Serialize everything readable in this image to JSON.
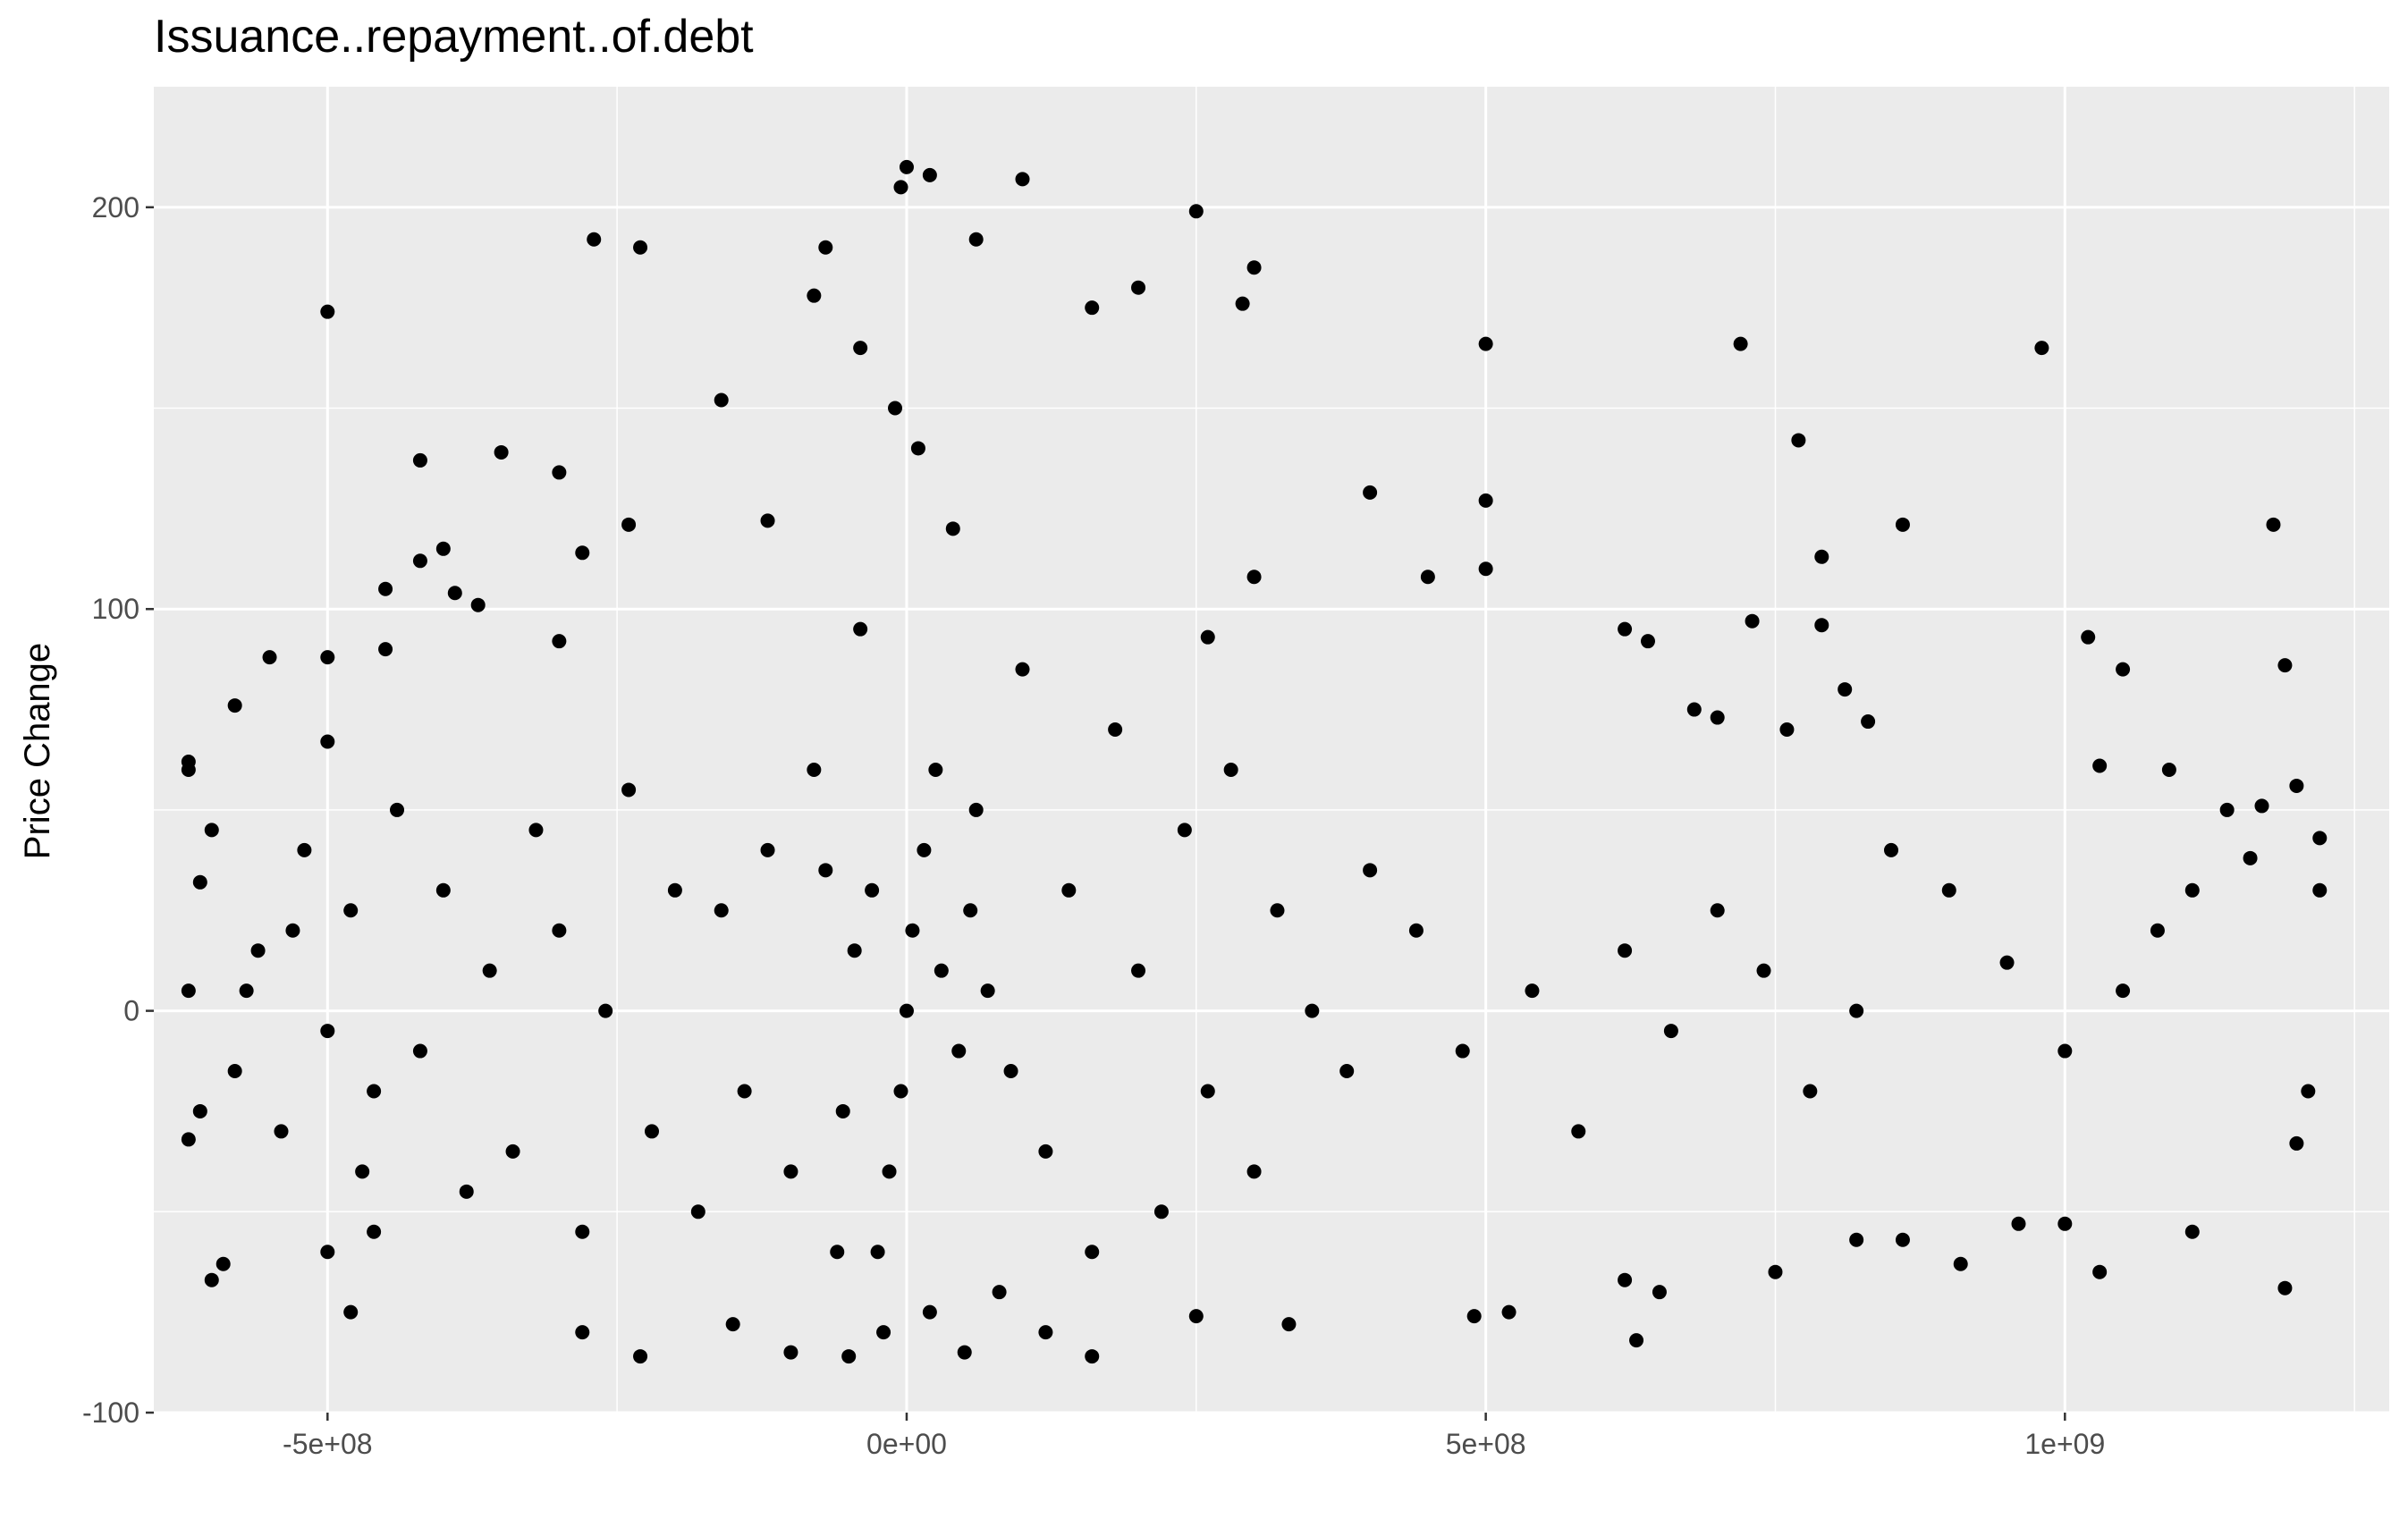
{
  "chart_data": {
    "type": "scatter",
    "title": "Issuance..repayment..of.debt",
    "xlabel": "",
    "ylabel": "Price Change",
    "xlim": [
      -650000000,
      1280000000
    ],
    "ylim": [
      -100,
      230
    ],
    "x_ticks": [
      {
        "value": -500000000,
        "label": "-5e+08"
      },
      {
        "value": 0,
        "label": "0e+00"
      },
      {
        "value": 500000000,
        "label": "5e+08"
      },
      {
        "value": 1000000000,
        "label": "1e+09"
      }
    ],
    "y_ticks": [
      {
        "value": -100,
        "label": "-100"
      },
      {
        "value": 0,
        "label": "0"
      },
      {
        "value": 100,
        "label": "100"
      },
      {
        "value": 200,
        "label": "200"
      }
    ],
    "grid": true,
    "background": "#ebebeb",
    "point_color": "#000000",
    "series": [
      {
        "points": [
          [
            0,
            210
          ],
          [
            -5000000,
            205
          ],
          [
            20000000,
            208
          ],
          [
            100000000,
            207
          ],
          [
            250000000,
            199
          ],
          [
            -500000000,
            174
          ],
          [
            -270000000,
            192
          ],
          [
            -230000000,
            190
          ],
          [
            300000000,
            185
          ],
          [
            290000000,
            176
          ],
          [
            -70000000,
            190
          ],
          [
            60000000,
            192
          ],
          [
            -80000000,
            178
          ],
          [
            -40000000,
            165
          ],
          [
            160000000,
            175
          ],
          [
            200000000,
            180
          ],
          [
            -160000000,
            152
          ],
          [
            -420000000,
            137
          ],
          [
            -350000000,
            139
          ],
          [
            -300000000,
            134
          ],
          [
            -120000000,
            122
          ],
          [
            -240000000,
            121
          ],
          [
            -280000000,
            114
          ],
          [
            -420000000,
            112
          ],
          [
            -400000000,
            115
          ],
          [
            -370000000,
            101
          ],
          [
            -390000000,
            104
          ],
          [
            -450000000,
            105
          ],
          [
            -550000000,
            88
          ],
          [
            -500000000,
            88
          ],
          [
            -450000000,
            90
          ],
          [
            -580000000,
            76
          ],
          [
            -300000000,
            92
          ],
          [
            -500000000,
            67
          ],
          [
            -620000000,
            62
          ],
          [
            -620000000,
            60
          ],
          [
            -610000000,
            32
          ],
          [
            -620000000,
            5
          ],
          [
            -620000000,
            -32
          ],
          [
            -600000000,
            -67
          ],
          [
            -590000000,
            -63
          ],
          [
            -480000000,
            -75
          ],
          [
            -500000000,
            -60
          ],
          [
            -460000000,
            -55
          ],
          [
            -280000000,
            -80
          ],
          [
            -230000000,
            -86
          ],
          [
            -150000000,
            -78
          ],
          [
            -100000000,
            -85
          ],
          [
            -50000000,
            -86
          ],
          [
            50000000,
            -85
          ],
          [
            120000000,
            -80
          ],
          [
            160000000,
            -86
          ],
          [
            250000000,
            -76
          ],
          [
            330000000,
            -78
          ],
          [
            490000000,
            -76
          ],
          [
            520000000,
            -75
          ],
          [
            630000000,
            -82
          ],
          [
            620000000,
            -67
          ],
          [
            650000000,
            -70
          ],
          [
            750000000,
            -65
          ],
          [
            820000000,
            -57
          ],
          [
            860000000,
            -57
          ],
          [
            910000000,
            -63
          ],
          [
            960000000,
            -53
          ],
          [
            1000000000,
            -53
          ],
          [
            1030000000,
            -65
          ],
          [
            1110000000,
            -55
          ],
          [
            1190000000,
            -69
          ],
          [
            1200000000,
            -33
          ],
          [
            1210000000,
            -20
          ],
          [
            1220000000,
            30
          ],
          [
            1220000000,
            43
          ],
          [
            1200000000,
            56
          ],
          [
            1190000000,
            86
          ],
          [
            1180000000,
            121
          ],
          [
            1050000000,
            85
          ],
          [
            1020000000,
            93
          ],
          [
            1030000000,
            61
          ],
          [
            980000000,
            165
          ],
          [
            720000000,
            166
          ],
          [
            500000000,
            166
          ],
          [
            770000000,
            142
          ],
          [
            860000000,
            121
          ],
          [
            790000000,
            113
          ],
          [
            730000000,
            97
          ],
          [
            790000000,
            96
          ],
          [
            810000000,
            80
          ],
          [
            500000000,
            127
          ],
          [
            400000000,
            129
          ],
          [
            450000000,
            108
          ],
          [
            500000000,
            110
          ],
          [
            300000000,
            108
          ],
          [
            260000000,
            93
          ],
          [
            620000000,
            95
          ],
          [
            640000000,
            92
          ],
          [
            680000000,
            75
          ],
          [
            700000000,
            73
          ],
          [
            760000000,
            70
          ],
          [
            830000000,
            72
          ],
          [
            1090000000,
            60
          ],
          [
            1140000000,
            50
          ],
          [
            1170000000,
            51
          ],
          [
            1160000000,
            38
          ],
          [
            1110000000,
            30
          ],
          [
            1080000000,
            20
          ],
          [
            1050000000,
            5
          ],
          [
            1000000000,
            -10
          ],
          [
            950000000,
            12
          ],
          [
            900000000,
            30
          ],
          [
            850000000,
            40
          ],
          [
            820000000,
            0
          ],
          [
            780000000,
            -20
          ],
          [
            740000000,
            10
          ],
          [
            700000000,
            25
          ],
          [
            660000000,
            -5
          ],
          [
            620000000,
            15
          ],
          [
            580000000,
            -30
          ],
          [
            540000000,
            5
          ],
          [
            480000000,
            -10
          ],
          [
            440000000,
            20
          ],
          [
            400000000,
            35
          ],
          [
            380000000,
            -15
          ],
          [
            350000000,
            0
          ],
          [
            320000000,
            25
          ],
          [
            300000000,
            -40
          ],
          [
            280000000,
            60
          ],
          [
            260000000,
            -20
          ],
          [
            240000000,
            45
          ],
          [
            220000000,
            -50
          ],
          [
            200000000,
            10
          ],
          [
            180000000,
            70
          ],
          [
            160000000,
            -60
          ],
          [
            140000000,
            30
          ],
          [
            120000000,
            -35
          ],
          [
            100000000,
            85
          ],
          [
            80000000,
            -70
          ],
          [
            60000000,
            50
          ],
          [
            40000000,
            120
          ],
          [
            20000000,
            -75
          ],
          [
            10000000,
            140
          ],
          [
            -10000000,
            150
          ],
          [
            -20000000,
            -80
          ],
          [
            -40000000,
            95
          ],
          [
            -60000000,
            -60
          ],
          [
            -80000000,
            60
          ],
          [
            -100000000,
            -40
          ],
          [
            -120000000,
            40
          ],
          [
            -140000000,
            -20
          ],
          [
            -160000000,
            25
          ],
          [
            -180000000,
            -50
          ],
          [
            -200000000,
            30
          ],
          [
            -220000000,
            -30
          ],
          [
            -240000000,
            55
          ],
          [
            -260000000,
            0
          ],
          [
            -280000000,
            -55
          ],
          [
            -300000000,
            20
          ],
          [
            -320000000,
            45
          ],
          [
            -340000000,
            -35
          ],
          [
            -360000000,
            10
          ],
          [
            -380000000,
            -45
          ],
          [
            -400000000,
            30
          ],
          [
            -420000000,
            -10
          ],
          [
            -440000000,
            50
          ],
          [
            -460000000,
            -20
          ],
          [
            -480000000,
            25
          ],
          [
            -500000000,
            -5
          ],
          [
            -520000000,
            40
          ],
          [
            -540000000,
            -30
          ],
          [
            -560000000,
            15
          ],
          [
            -580000000,
            -15
          ],
          [
            -600000000,
            45
          ],
          [
            -610000000,
            -25
          ],
          [
            -570000000,
            5
          ],
          [
            -530000000,
            20
          ],
          [
            -470000000,
            -40
          ],
          [
            0,
            0
          ],
          [
            5000000,
            20
          ],
          [
            -5000000,
            -20
          ],
          [
            15000000,
            40
          ],
          [
            -15000000,
            -40
          ],
          [
            25000000,
            60
          ],
          [
            -25000000,
            -60
          ],
          [
            30000000,
            10
          ],
          [
            -30000000,
            30
          ],
          [
            45000000,
            -10
          ],
          [
            -45000000,
            15
          ],
          [
            55000000,
            25
          ],
          [
            -55000000,
            -25
          ],
          [
            70000000,
            5
          ],
          [
            -70000000,
            35
          ],
          [
            90000000,
            -15
          ]
        ]
      }
    ]
  }
}
